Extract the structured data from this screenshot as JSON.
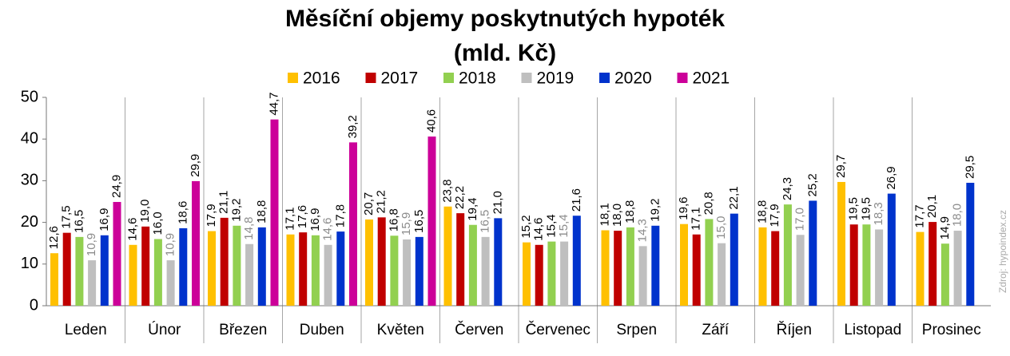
{
  "chart_data": {
    "type": "bar",
    "title": "Měsíční objemy poskytnutých hypoték",
    "subtitle": "(mld. Kč)",
    "source": "Zdroj: hypoindex.cz",
    "categories": [
      "Leden",
      "Únor",
      "Březen",
      "Duben",
      "Květen",
      "Červen",
      "Červenec",
      "Srpen",
      "Září",
      "Říjen",
      "Listopad",
      "Prosinec"
    ],
    "series": [
      {
        "name": "2016",
        "color": "#ffc000",
        "values": [
          12.6,
          14.6,
          17.9,
          17.1,
          20.7,
          23.8,
          15.2,
          18.1,
          19.6,
          18.8,
          29.7,
          17.7
        ],
        "value_labels": [
          "12,6",
          "14,6",
          "17,9",
          "17,1",
          "20,7",
          "23,8",
          "15,2",
          "18,1",
          "19,6",
          "18,8",
          "29,7",
          "17,7"
        ]
      },
      {
        "name": "2017",
        "color": "#c00000",
        "values": [
          17.5,
          19.0,
          21.1,
          17.6,
          21.2,
          22.2,
          14.6,
          18.0,
          17.1,
          17.9,
          19.5,
          20.1
        ],
        "value_labels": [
          "17,5",
          "19,0",
          "21,1",
          "17,6",
          "21,2",
          "22,2",
          "14,6",
          "18,0",
          "17,1",
          "17,9",
          "19,5",
          "20,1"
        ]
      },
      {
        "name": "2018",
        "color": "#92d050",
        "values": [
          16.5,
          16.0,
          19.2,
          16.9,
          16.8,
          19.4,
          15.4,
          18.8,
          20.8,
          24.3,
          19.5,
          14.9
        ],
        "value_labels": [
          "16,5",
          "16,0",
          "19,2",
          "16,9",
          "16,8",
          "19,4",
          "15,4",
          "18,8",
          "20,8",
          "24,3",
          "19,5",
          "14,9"
        ]
      },
      {
        "name": "2019",
        "color": "#bfbfbf",
        "values": [
          10.9,
          10.9,
          14.8,
          14.6,
          15.9,
          16.5,
          15.4,
          14.3,
          15.0,
          17.0,
          18.3,
          18.0
        ],
        "value_labels": [
          "10,9",
          "10,9",
          "14,8",
          "14,6",
          "15,9",
          "16,5",
          "15,4",
          "14,3",
          "15,0",
          "17,0",
          "18,3",
          "18,0"
        ]
      },
      {
        "name": "2020",
        "color": "#0033cc",
        "values": [
          16.9,
          18.6,
          18.8,
          17.8,
          16.5,
          21.0,
          21.6,
          19.2,
          22.1,
          25.2,
          26.9,
          29.5
        ],
        "value_labels": [
          "16,9",
          "18,6",
          "18,8",
          "17,8",
          "16,5",
          "21,0",
          "21,6",
          "19,2",
          "22,1",
          "25,2",
          "26,9",
          "29,5"
        ]
      },
      {
        "name": "2021",
        "color": "#cc0099",
        "values": [
          24.9,
          29.9,
          44.7,
          39.2,
          40.6,
          null,
          null,
          null,
          null,
          null,
          null,
          null
        ],
        "value_labels": [
          "24,9",
          "29,9",
          "44,7",
          "39,2",
          "40,6",
          null,
          null,
          null,
          null,
          null,
          null,
          null
        ]
      }
    ],
    "ylim": [
      0,
      50
    ],
    "yticks": [
      0,
      10,
      20,
      30,
      40,
      50
    ],
    "grid": false,
    "legend": "top"
  }
}
